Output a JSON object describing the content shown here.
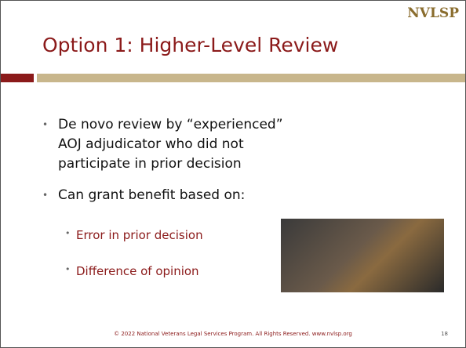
{
  "logo": "NVLSP",
  "title": "Option 1: Higher-Level Review",
  "bullets": [
    "De novo review by “experienced” AOJ adjudicator who did not participate in prior decision",
    "Can grant benefit based on:"
  ],
  "sub_bullets": [
    "Error in prior decision",
    "Difference of opinion"
  ],
  "footer": "© 2022 National Veterans Legal Services Program. All Rights Reserved. www.nvlsp.org",
  "page_number": "18"
}
